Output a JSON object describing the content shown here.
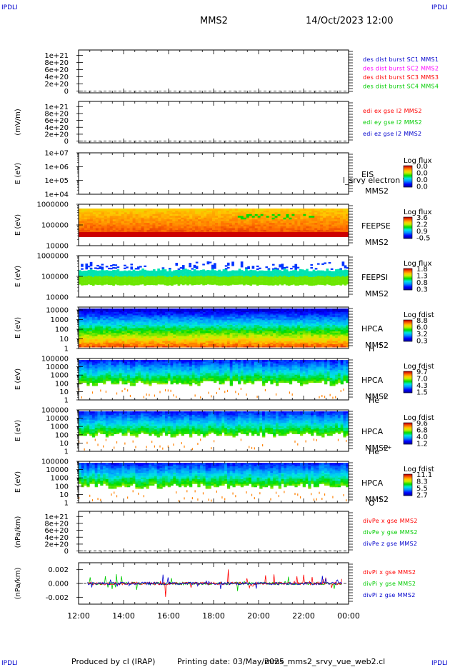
{
  "header": {
    "corner_mark": "IPDLI",
    "spacecraft": "MMS2",
    "datetime": "14/Oct/2023 12:00"
  },
  "footer": {
    "produced_by": "Produced by cl (IRAP)",
    "printing_date": "Printing date: 03/May/2025",
    "script": "mms_mms2_srvy_vue_web2.cl"
  },
  "colors": {
    "red": "#ff0000",
    "green": "#00cc00",
    "blue": "#0000cc",
    "magenta": "#ff00ff",
    "fill_red": "#cc0000"
  },
  "chart_data": [
    {
      "type": "line",
      "panel": "des-dist-burst",
      "ylabel": "",
      "ylim": [
        -5e+19,
        1.15e+21
      ],
      "yticks": [
        0,
        2e+20,
        4e+20,
        6e+20,
        8e+20,
        1e+21
      ],
      "ytick_labels": [
        "0",
        "2e+20",
        "4e+20",
        "6e+20",
        "8e+20",
        "1e+21"
      ],
      "zero_line": "dashed",
      "legend": [
        {
          "text": "des dist burst SC1 MMS1",
          "color": "#0000cc"
        },
        {
          "text": "des dist burst SC2 MMS2",
          "color": "#ff00ff"
        },
        {
          "text": "des dist burst SC3 MMS3",
          "color": "#ff0000"
        },
        {
          "text": "des dist burst SC4 MMS4",
          "color": "#00cc00"
        }
      ]
    },
    {
      "type": "line",
      "panel": "edi-e-gse",
      "ylabel": "(mV/m)",
      "ylim": [
        -5e+19,
        1.15e+21
      ],
      "yticks": [
        0,
        2e+20,
        4e+20,
        6e+20,
        8e+20,
        1e+21
      ],
      "ytick_labels": [
        "0",
        "2e+20",
        "4e+20",
        "6e+20",
        "8e+20",
        "1e+21"
      ],
      "zero_line": "dashed",
      "legend": [
        {
          "text": "edi ex gse l2 MMS2",
          "color": "#ff0000"
        },
        {
          "text": "edi ey gse l2 MMS2",
          "color": "#00cc00"
        },
        {
          "text": "edi ez gse l2 MMS2",
          "color": "#0000cc"
        }
      ]
    },
    {
      "type": "heatmap",
      "panel": "eis",
      "ylabel": "E (eV)",
      "yscale": "log",
      "ylim": [
        10000.0,
        10000000.0
      ],
      "ytick_labels": [
        "1e+04",
        "1e+05",
        "1e+06",
        "1e+07"
      ],
      "fill": "none",
      "instrument": [
        "EIS",
        "MMS2"
      ],
      "overlay_text": "l_srvy electron to",
      "colorbar": {
        "title": "Log flux",
        "ticks": [
          "0.0",
          "0.0",
          "0.0",
          "0.0"
        ]
      }
    },
    {
      "type": "heatmap",
      "panel": "feeps-e",
      "ylabel": "E (eV)",
      "yscale": "log",
      "ylim": [
        10000,
        1000000
      ],
      "ytick_labels": [
        "10000",
        "100000",
        "1000000"
      ],
      "fill": "feepse",
      "instrument": [
        "FEEPSE",
        "MMS2"
      ],
      "colorbar": {
        "title": "Log flux",
        "ticks": [
          "3.6",
          "2.2",
          "0.9",
          "-0.5"
        ]
      }
    },
    {
      "type": "heatmap",
      "panel": "feeps-i",
      "ylabel": "E (eV)",
      "yscale": "log",
      "ylim": [
        10000,
        1000000
      ],
      "ytick_labels": [
        "10000",
        "100000",
        "1000000"
      ],
      "fill": "feepsi",
      "instrument": [
        "FEEPSI",
        "MMS2"
      ],
      "colorbar": {
        "title": "Log flux",
        "ticks": [
          "1.8",
          "1.3",
          "0.8",
          "0.3"
        ]
      }
    },
    {
      "type": "heatmap",
      "panel": "hpca-h",
      "ylabel": "E (eV)",
      "yscale": "log",
      "ylim": [
        1,
        20000
      ],
      "ytick_labels": [
        "1",
        "10",
        "100",
        "1000",
        "10000"
      ],
      "fill": "hpca_h",
      "instrument": [
        "HPCA",
        "MMS2",
        "H",
        "+"
      ],
      "colorbar": {
        "title": "Log fdist",
        "ticks": [
          "8.8",
          "6.0",
          "3.2",
          "0.3"
        ]
      }
    },
    {
      "type": "heatmap",
      "panel": "hpca-he",
      "ylabel": "E (eV)",
      "yscale": "log",
      "ylim": [
        1,
        100000
      ],
      "ytick_labels": [
        "1",
        "10",
        "100",
        "1000",
        "10000",
        "100000"
      ],
      "fill": "hpca_he",
      "instrument": [
        "HPCA",
        "MMS2",
        "He",
        "+"
      ],
      "colorbar": {
        "title": "Log fdist",
        "ticks": [
          "9.7",
          "7.0",
          "4.3",
          "1.5"
        ]
      }
    },
    {
      "type": "heatmap",
      "panel": "hpca-hepp",
      "ylabel": "E (eV)",
      "yscale": "log",
      "ylim": [
        1,
        100000
      ],
      "ytick_labels": [
        "1",
        "10",
        "100",
        "1000",
        "10000",
        "100000"
      ],
      "fill": "hpca_hepp",
      "instrument": [
        "HPCA",
        "MMS2",
        "He",
        "++"
      ],
      "colorbar": {
        "title": "Log fdist",
        "ticks": [
          "9.6",
          "6.8",
          "4.0",
          "1.2"
        ]
      }
    },
    {
      "type": "heatmap",
      "panel": "hpca-o",
      "ylabel": "E (eV)",
      "yscale": "log",
      "ylim": [
        1,
        100000
      ],
      "ytick_labels": [
        "1",
        "10",
        "100",
        "1000",
        "10000",
        "100000"
      ],
      "fill": "hpca_o",
      "instrument": [
        "HPCA",
        "MMS2",
        "O",
        "+"
      ],
      "colorbar": {
        "title": "Log fdist",
        "ticks": [
          "11.1",
          "8.3",
          "5.5",
          "2.7"
        ]
      }
    },
    {
      "type": "line",
      "panel": "divpe",
      "ylabel": "(nPa/km)",
      "ylim": [
        -5e+19,
        1.15e+21
      ],
      "yticks": [
        0,
        2e+20,
        4e+20,
        6e+20,
        8e+20,
        1e+21
      ],
      "ytick_labels": [
        "0",
        "2e+20",
        "4e+20",
        "6e+20",
        "8e+20",
        "1e+21"
      ],
      "zero_line": "dashed",
      "legend": [
        {
          "text": "divPe x gse MMS2",
          "color": "#ff0000"
        },
        {
          "text": "divPe y gse MMS2",
          "color": "#00cc00"
        },
        {
          "text": "divPe z gse MMS2",
          "color": "#0000cc"
        }
      ]
    },
    {
      "type": "line",
      "panel": "divpi",
      "ylabel": "(nPa/km)",
      "ylim": [
        -0.003,
        0.003
      ],
      "yticks": [
        -0.002,
        0.0,
        0.002
      ],
      "ytick_labels": [
        "-0.002",
        "0.000",
        "0.002"
      ],
      "zero_line": "dashed",
      "series_data": "noisy",
      "legend": [
        {
          "text": "divPi x gse MMS2",
          "color": "#ff0000"
        },
        {
          "text": "divPi y gse MMS2",
          "color": "#00cc00"
        },
        {
          "text": "divPi z gse MMS2",
          "color": "#0000cc"
        }
      ]
    }
  ],
  "time_axis": {
    "range_hours": [
      12,
      24
    ],
    "tick_labels": [
      "12:00",
      "14:00",
      "16:00",
      "18:00",
      "20:00",
      "22:00",
      "00:00"
    ]
  }
}
